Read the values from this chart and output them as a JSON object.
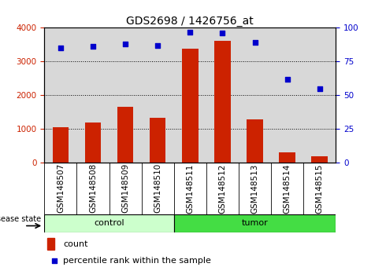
{
  "title": "GDS2698 / 1426756_at",
  "samples": [
    "GSM148507",
    "GSM148508",
    "GSM148509",
    "GSM148510",
    "GSM148511",
    "GSM148512",
    "GSM148513",
    "GSM148514",
    "GSM148515"
  ],
  "counts": [
    1050,
    1180,
    1650,
    1320,
    3380,
    3620,
    1280,
    310,
    200
  ],
  "percentiles": [
    85,
    86,
    88,
    87,
    97,
    96,
    89,
    62,
    55
  ],
  "groups": [
    "control",
    "control",
    "control",
    "control",
    "tumor",
    "tumor",
    "tumor",
    "tumor",
    "tumor"
  ],
  "control_color": "#ccffcc",
  "tumor_color": "#44dd44",
  "bar_color": "#CC2200",
  "dot_color": "#0000CC",
  "ylim_left": [
    0,
    4000
  ],
  "ylim_right": [
    0,
    100
  ],
  "yticks_left": [
    0,
    1000,
    2000,
    3000,
    4000
  ],
  "yticks_right": [
    0,
    25,
    50,
    75,
    100
  ],
  "plot_bg": "#d8d8d8",
  "legend_count_label": "count",
  "legend_pct_label": "percentile rank within the sample",
  "group_label": "disease state",
  "title_fontsize": 10,
  "tick_fontsize": 7.5,
  "label_fontsize": 8
}
